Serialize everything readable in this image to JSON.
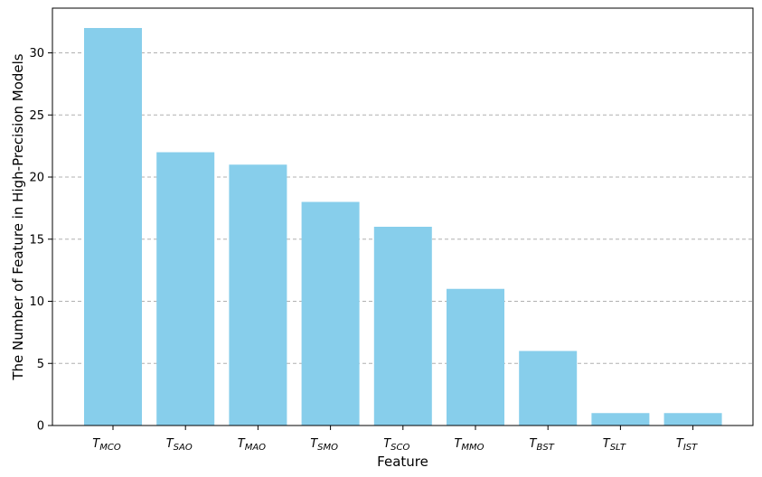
{
  "chart_data": {
    "type": "bar",
    "categories": [
      {
        "base": "T",
        "sub": "MCO"
      },
      {
        "base": "T",
        "sub": "SAO"
      },
      {
        "base": "T",
        "sub": "MAO"
      },
      {
        "base": "T",
        "sub": "SMO"
      },
      {
        "base": "T",
        "sub": "SCO"
      },
      {
        "base": "T",
        "sub": "MMO"
      },
      {
        "base": "T",
        "sub": "BST"
      },
      {
        "base": "T",
        "sub": "SLT"
      },
      {
        "base": "T",
        "sub": "IST"
      }
    ],
    "values": [
      32,
      22,
      21,
      18,
      16,
      11,
      6,
      1,
      1
    ],
    "xlabel": "Feature",
    "ylabel": "The Number of Feature in High-Precision Models",
    "ylim": [
      0,
      33.6
    ],
    "yticks": [
      0,
      5,
      10,
      15,
      20,
      25,
      30
    ],
    "grid": "y-dashed",
    "bar_color": "#87ceeb"
  }
}
